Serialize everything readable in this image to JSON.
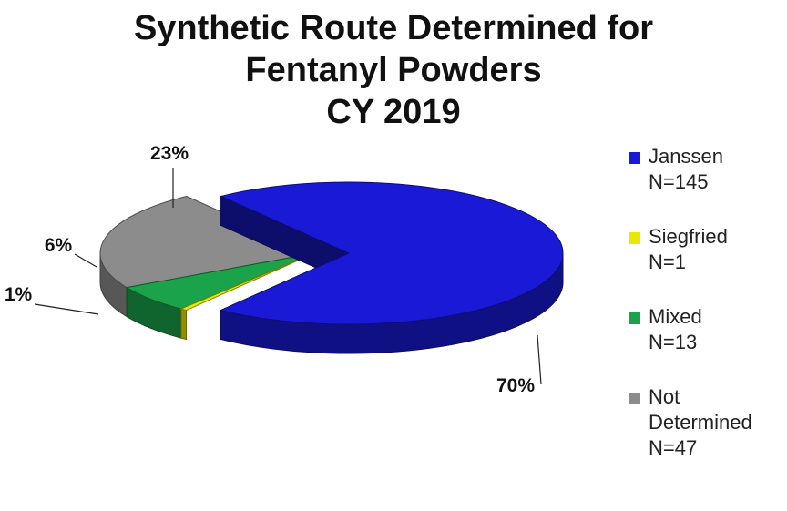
{
  "chart_data": {
    "type": "pie",
    "title_lines": [
      "Synthetic Route Determined for",
      "Fentanyl Powders",
      "CY 2019"
    ],
    "slices": [
      {
        "name": "Janssen",
        "count_label": "N=145",
        "value": 145,
        "percent_label": "70%",
        "color": "#1a1ad6"
      },
      {
        "name": "Siegfried",
        "count_label": "N=1",
        "value": 1,
        "percent_label": "1%",
        "color": "#e8e800"
      },
      {
        "name": "Mixed",
        "count_label": "N=13",
        "value": 13,
        "percent_label": "6%",
        "color": "#1aa34a"
      },
      {
        "name": "Not Determined",
        "count_label": "N=47",
        "value": 47,
        "percent_label": "23%",
        "color": "#8c8c8c"
      }
    ],
    "legend_position": "right",
    "legend_name_lines": [
      [
        "Janssen"
      ],
      [
        "Siegfried"
      ],
      [
        "Mixed"
      ],
      [
        "Not",
        "Determined"
      ]
    ]
  }
}
